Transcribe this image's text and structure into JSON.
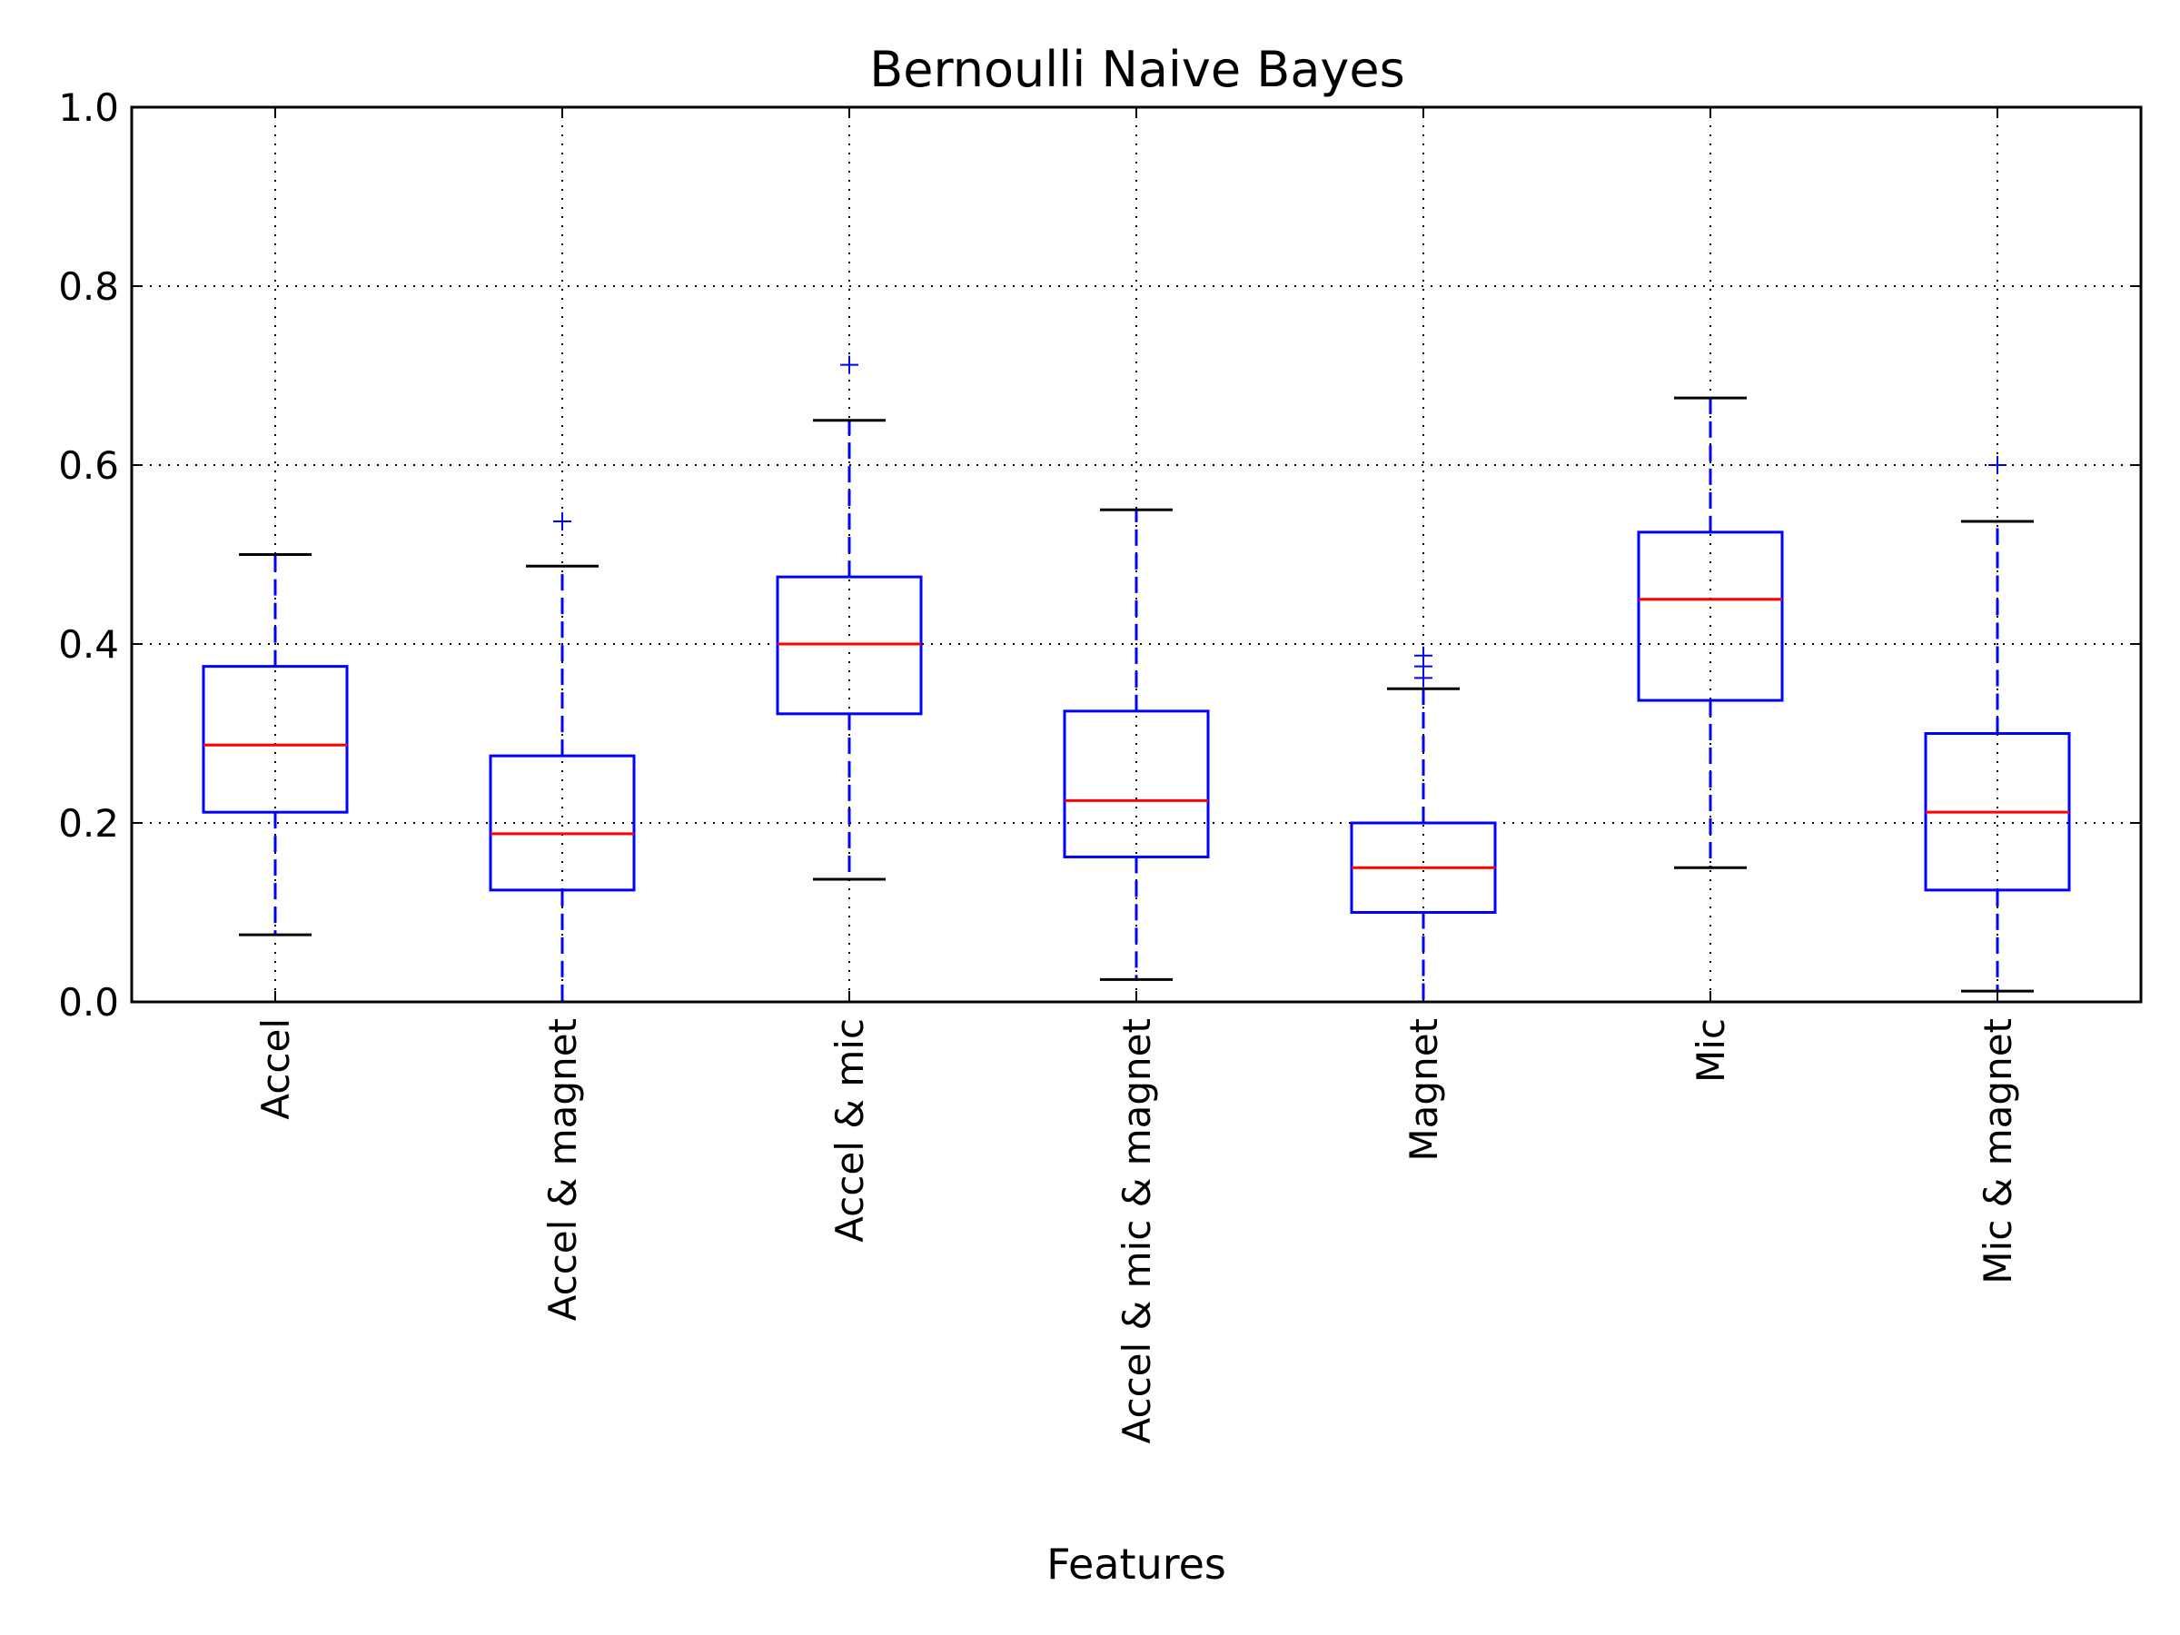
{
  "chart_data": {
    "type": "boxplot",
    "title": "Bernoulli Naive Bayes",
    "xlabel": "Features",
    "ylabel": "",
    "ylim": [
      0.0,
      1.0
    ],
    "yticks": [
      "0.0",
      "0.2",
      "0.4",
      "0.6",
      "0.8",
      "1.0"
    ],
    "grid": true,
    "categories": [
      "Accel",
      "Accel & magnet",
      "Accel & mic",
      "Accel & mic & magnet",
      "Magnet",
      "Mic",
      "Mic & magnet"
    ],
    "boxes": [
      {
        "whisker_low": 0.075,
        "q1": 0.212,
        "median": 0.287,
        "q3": 0.375,
        "whisker_high": 0.5,
        "outliers": []
      },
      {
        "whisker_low": 0.0,
        "q1": 0.125,
        "median": 0.188,
        "q3": 0.275,
        "whisker_high": 0.487,
        "outliers": [
          0.537
        ]
      },
      {
        "whisker_low": 0.137,
        "q1": 0.322,
        "median": 0.4,
        "q3": 0.475,
        "whisker_high": 0.65,
        "outliers": [
          0.712
        ]
      },
      {
        "whisker_low": 0.025,
        "q1": 0.162,
        "median": 0.225,
        "q3": 0.325,
        "whisker_high": 0.55,
        "outliers": []
      },
      {
        "whisker_low": 0.0,
        "q1": 0.1,
        "median": 0.15,
        "q3": 0.2,
        "whisker_high": 0.35,
        "outliers": [
          0.362,
          0.375,
          0.387
        ]
      },
      {
        "whisker_low": 0.15,
        "q1": 0.337,
        "median": 0.45,
        "q3": 0.525,
        "whisker_high": 0.675,
        "outliers": []
      },
      {
        "whisker_low": 0.012,
        "q1": 0.125,
        "median": 0.212,
        "q3": 0.3,
        "whisker_high": 0.537,
        "outliers": [
          0.6
        ]
      }
    ],
    "colors": {
      "box": "#0000ff",
      "median": "#ff0000",
      "cap": "#000000",
      "outlier": "#0000ff",
      "grid": "#000000"
    }
  }
}
